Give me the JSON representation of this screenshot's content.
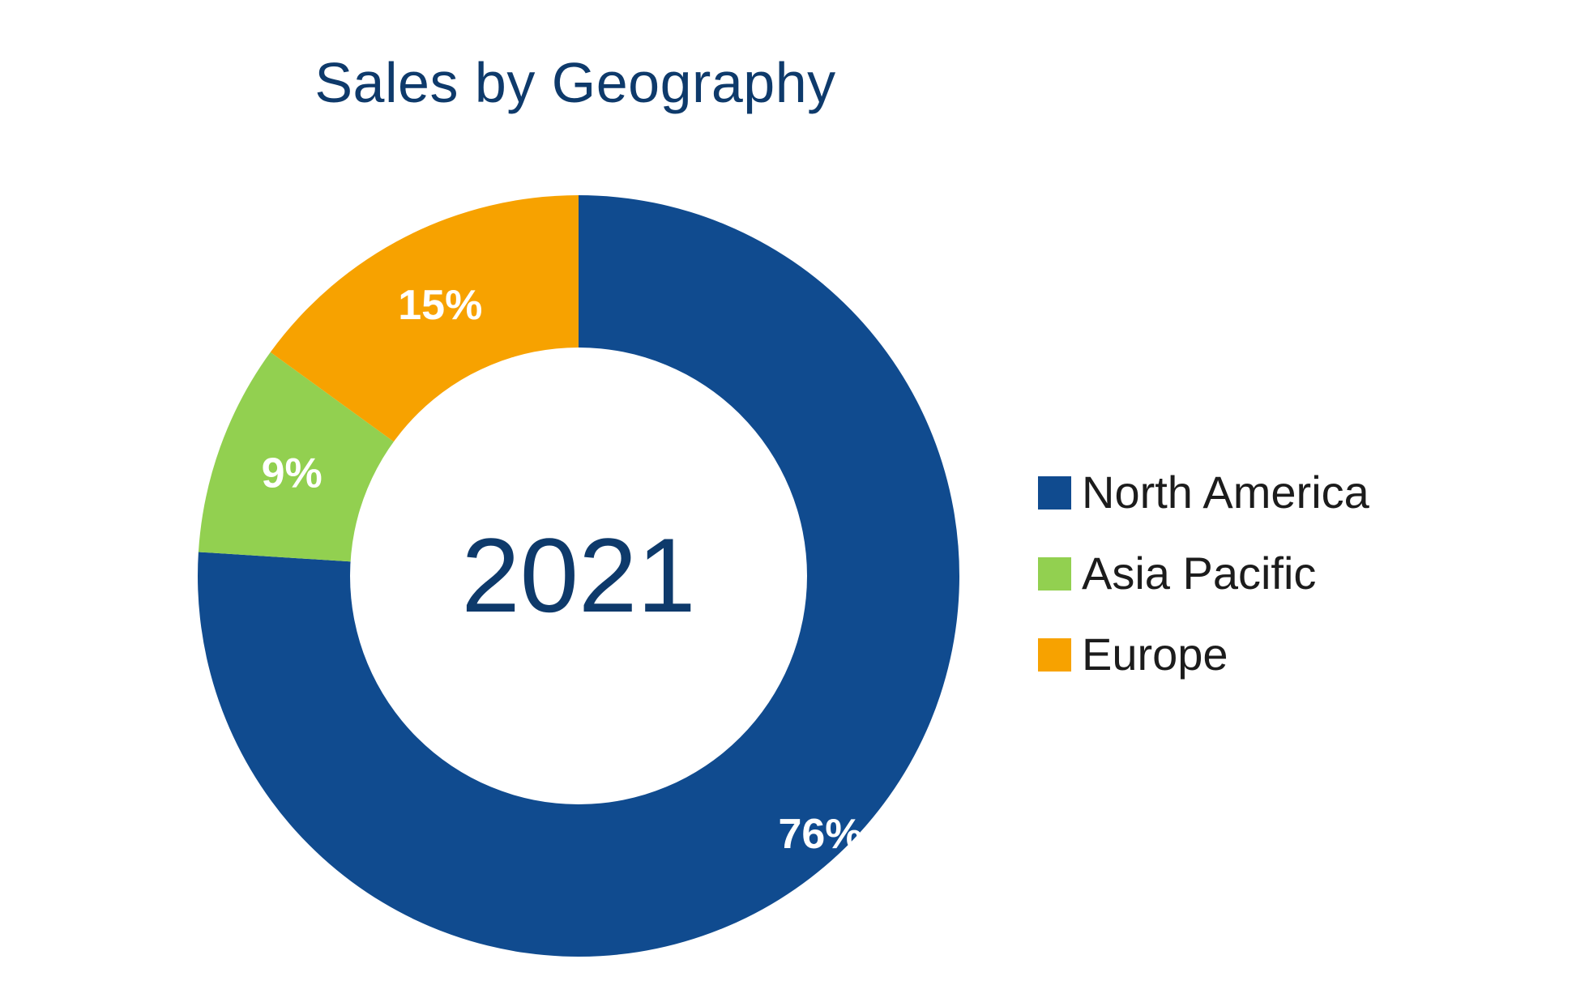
{
  "chart_data": {
    "type": "pie",
    "style": "donut",
    "title": "Sales by Geography",
    "center_label": "2021",
    "slices": [
      {
        "label": "North America",
        "value": 76,
        "display": "76%",
        "color": "#104b8f"
      },
      {
        "label": "Asia Pacific",
        "value": 9,
        "display": "9%",
        "color": "#92d050"
      },
      {
        "label": "Europe",
        "value": 15,
        "display": "15%",
        "color": "#f7a200"
      }
    ],
    "legend_position": "right",
    "label_color": "#ffffff",
    "title_color": "#0e3a6b"
  }
}
